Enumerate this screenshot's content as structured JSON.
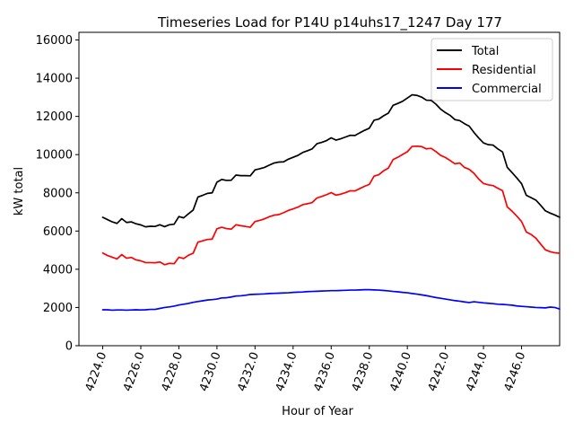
{
  "chart_data": {
    "type": "line",
    "title": "Timeseries Load for P14U p14uhs17_1247  Day 177",
    "xlabel": "Hour of Year",
    "ylabel": "kW total",
    "xlim": [
      4222.75,
      4248.0
    ],
    "ylim": [
      0,
      16400
    ],
    "xticks": [
      4224,
      4226,
      4228,
      4230,
      4232,
      4234,
      4236,
      4238,
      4240,
      4242,
      4244,
      4246
    ],
    "xtick_labels": [
      "4224.0",
      "4226.0",
      "4228.0",
      "4230.0",
      "4232.0",
      "4234.0",
      "4236.0",
      "4238.0",
      "4240.0",
      "4242.0",
      "4244.0",
      "4246.0"
    ],
    "yticks": [
      0,
      2000,
      4000,
      6000,
      8000,
      10000,
      12000,
      14000,
      16000
    ],
    "ytick_labels": [
      "0",
      "2000",
      "4000",
      "6000",
      "8000",
      "10000",
      "12000",
      "14000",
      "16000"
    ],
    "grid": false,
    "legend_position": "top-right",
    "x_start": 4224,
    "x_step": 0.25,
    "series": [
      {
        "name": "Total",
        "color": "#000000",
        "values": [
          6720,
          6600,
          6480,
          6400,
          6650,
          6450,
          6480,
          6380,
          6320,
          6220,
          6250,
          6240,
          6330,
          6230,
          6330,
          6360,
          6760,
          6690,
          6900,
          7100,
          7780,
          7870,
          7970,
          8000,
          8560,
          8700,
          8650,
          8660,
          8930,
          8900,
          8900,
          8890,
          9200,
          9260,
          9330,
          9450,
          9560,
          9610,
          9620,
          9760,
          9860,
          9960,
          10110,
          10200,
          10300,
          10570,
          10640,
          10730,
          10880,
          10760,
          10830,
          10920,
          11010,
          11000,
          11140,
          11270,
          11380,
          11800,
          11860,
          12030,
          12170,
          12580,
          12680,
          12790,
          12960,
          13130,
          13100,
          13010,
          12850,
          12840,
          12640,
          12380,
          12200,
          12050,
          11830,
          11780,
          11620,
          11490,
          11160,
          10870,
          10610,
          10520,
          10500,
          10300,
          10140,
          9330,
          9060,
          8780,
          8480,
          7870,
          7750,
          7620,
          7350,
          7060,
          6940,
          6840,
          6720
        ]
      },
      {
        "name": "Residential",
        "color": "#ff0000",
        "values": [
          4850,
          4720,
          4630,
          4540,
          4770,
          4580,
          4620,
          4490,
          4440,
          4350,
          4350,
          4340,
          4380,
          4240,
          4310,
          4290,
          4630,
          4560,
          4730,
          4840,
          5420,
          5490,
          5560,
          5580,
          6120,
          6200,
          6130,
          6100,
          6330,
          6280,
          6240,
          6200,
          6500,
          6560,
          6640,
          6750,
          6830,
          6860,
          6960,
          7080,
          7160,
          7250,
          7380,
          7430,
          7490,
          7730,
          7810,
          7900,
          8010,
          7880,
          7930,
          8010,
          8110,
          8100,
          8220,
          8340,
          8440,
          8870,
          8950,
          9150,
          9290,
          9740,
          9860,
          10010,
          10150,
          10430,
          10440,
          10420,
          10300,
          10330,
          10160,
          9960,
          9850,
          9690,
          9520,
          9560,
          9330,
          9230,
          9020,
          8720,
          8490,
          8420,
          8380,
          8240,
          8110,
          7260,
          7040,
          6780,
          6500,
          5950,
          5820,
          5630,
          5320,
          5020,
          4920,
          4860,
          4840
        ]
      },
      {
        "name": "Commercial",
        "color": "#0000ff",
        "values": [
          1880,
          1880,
          1860,
          1870,
          1870,
          1860,
          1870,
          1880,
          1870,
          1880,
          1900,
          1900,
          1950,
          2000,
          2030,
          2070,
          2130,
          2170,
          2210,
          2270,
          2310,
          2350,
          2390,
          2410,
          2440,
          2500,
          2510,
          2550,
          2600,
          2610,
          2640,
          2680,
          2690,
          2700,
          2710,
          2730,
          2740,
          2750,
          2760,
          2770,
          2790,
          2800,
          2810,
          2830,
          2840,
          2850,
          2860,
          2870,
          2880,
          2880,
          2890,
          2900,
          2910,
          2910,
          2920,
          2930,
          2930,
          2920,
          2910,
          2890,
          2870,
          2840,
          2820,
          2790,
          2770,
          2730,
          2700,
          2660,
          2620,
          2570,
          2520,
          2480,
          2440,
          2400,
          2360,
          2330,
          2290,
          2260,
          2300,
          2270,
          2240,
          2220,
          2200,
          2170,
          2160,
          2140,
          2120,
          2080,
          2060,
          2040,
          2020,
          2000,
          1990,
          1980,
          2020,
          2000,
          1920
        ]
      }
    ]
  }
}
